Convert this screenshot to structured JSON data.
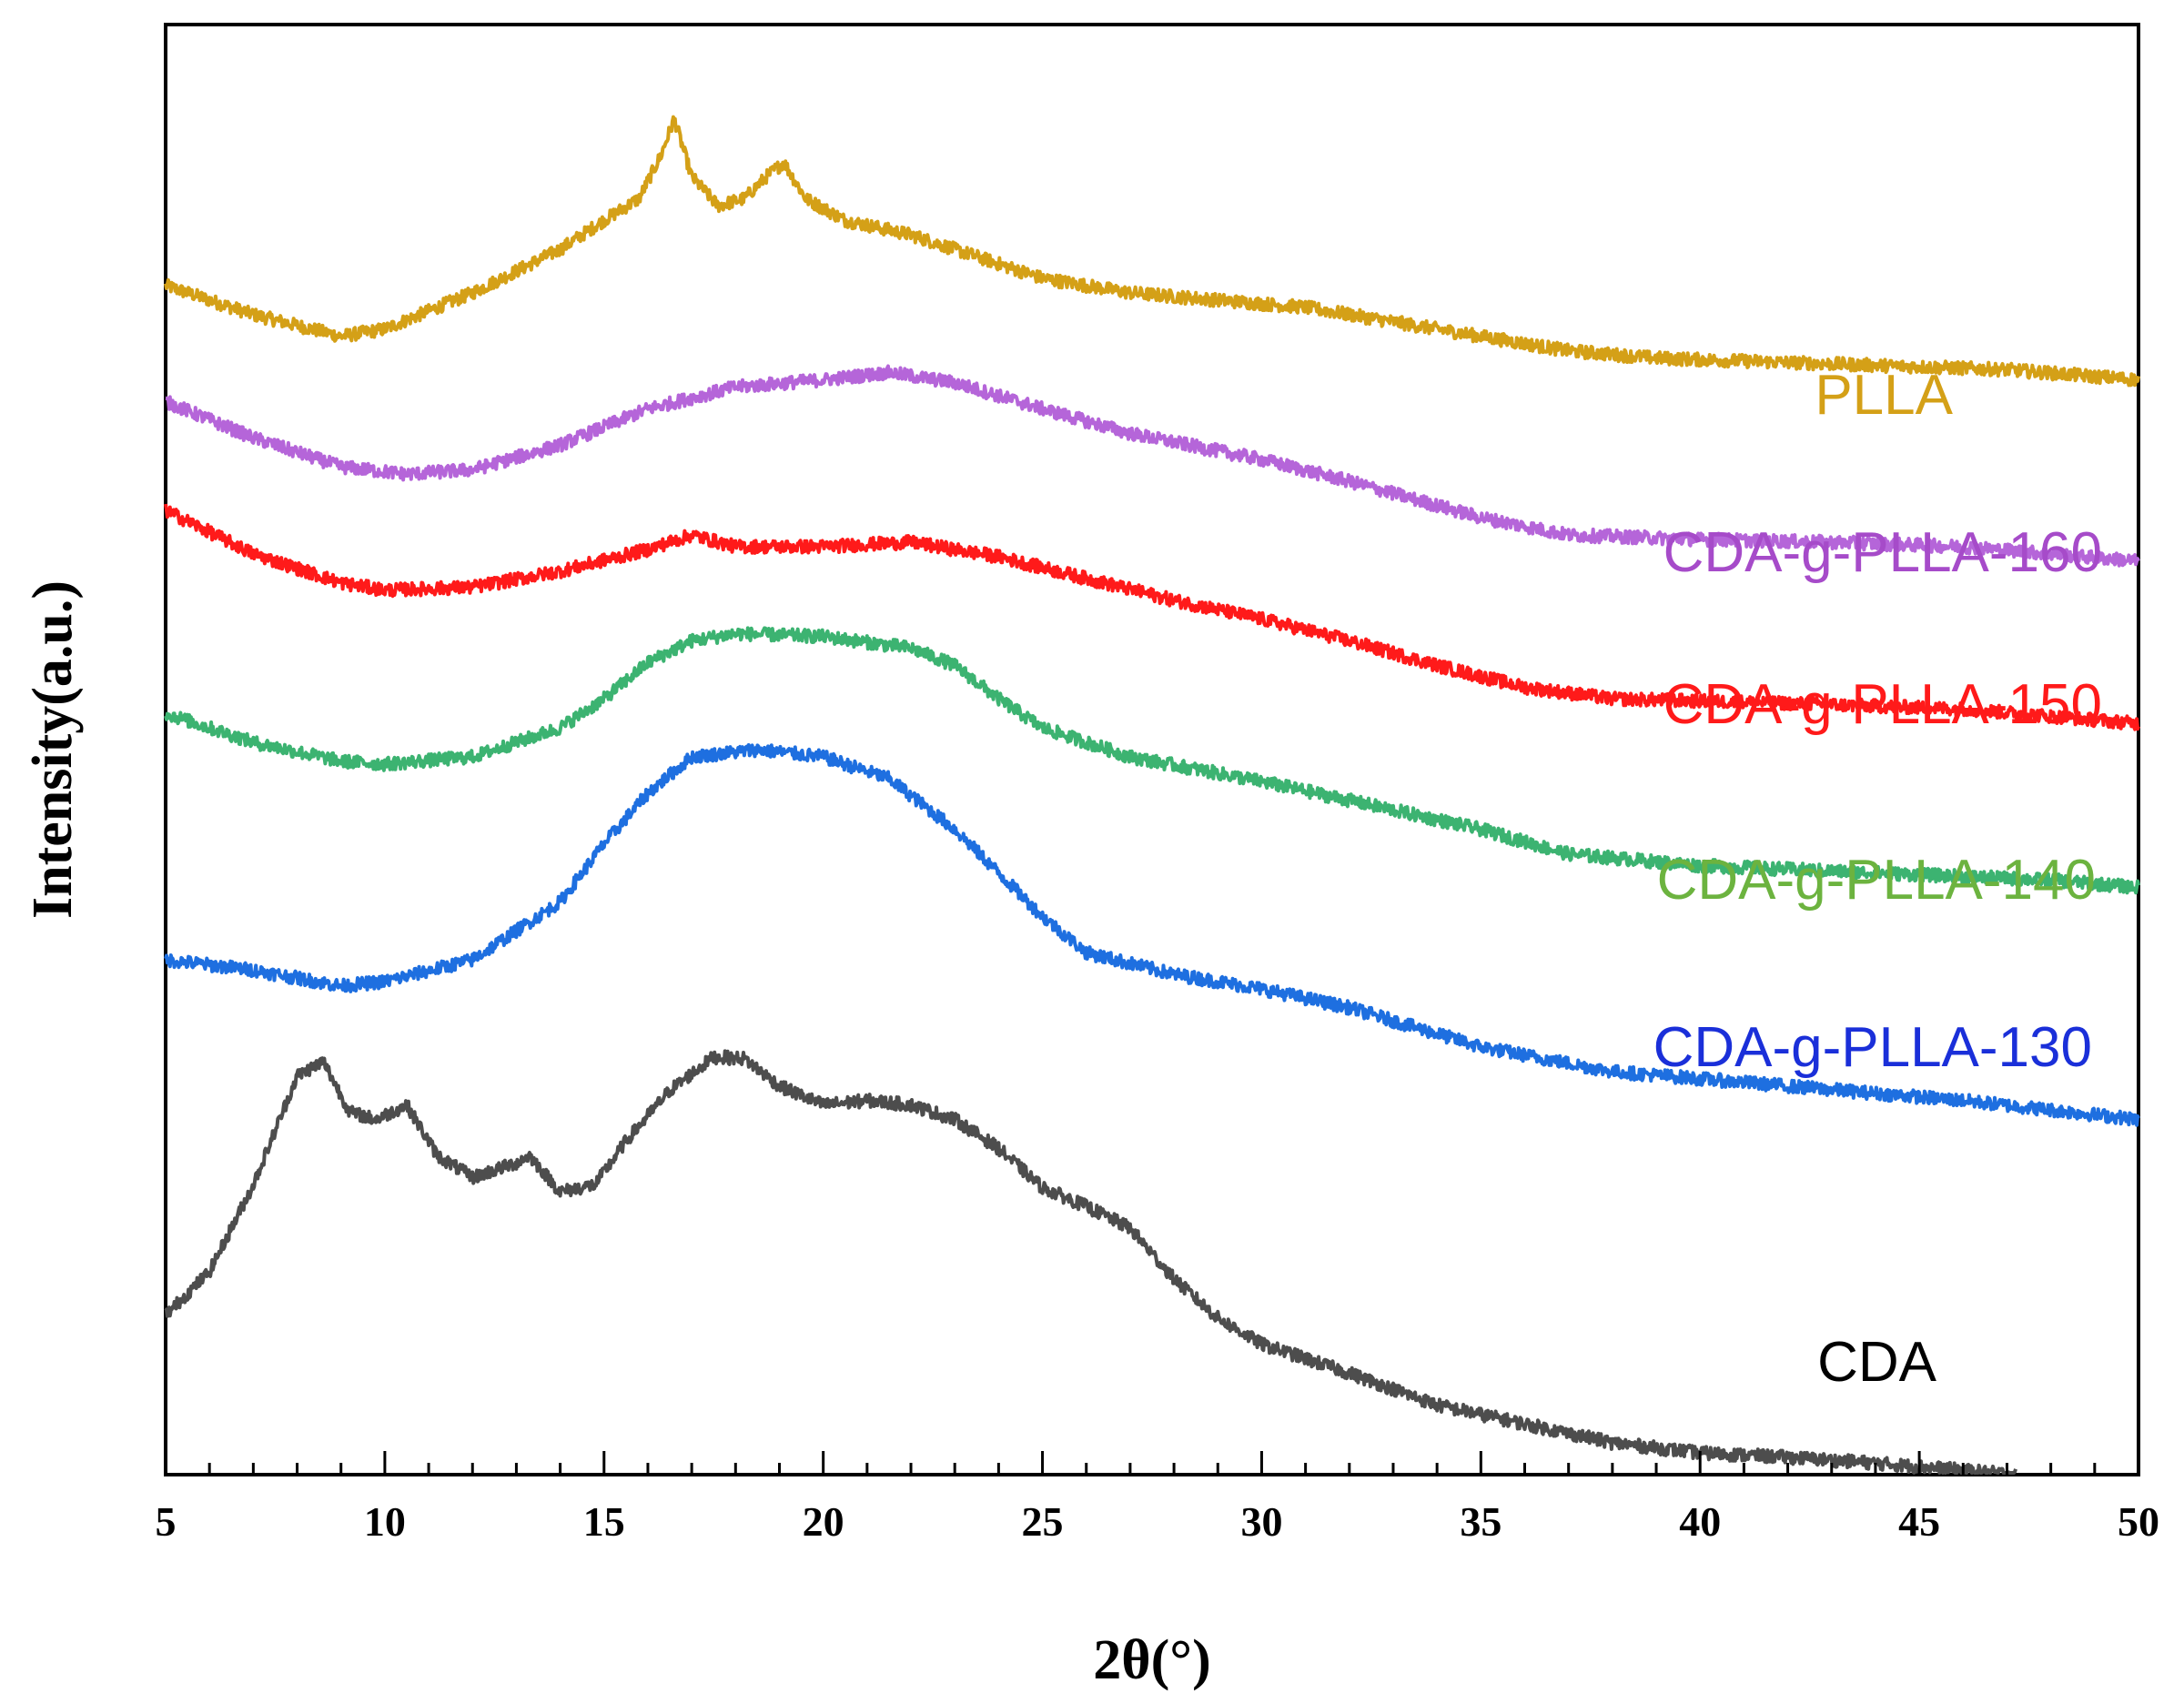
{
  "chart_data": {
    "type": "line",
    "title": "",
    "xlabel": "2θ(°)",
    "ylabel": "Intensity(a.u.)",
    "xlim": [
      5,
      50
    ],
    "ylim": [
      0,
      100
    ],
    "xticks": [
      5,
      10,
      15,
      20,
      25,
      30,
      35,
      40,
      45,
      50
    ],
    "yticks_shown": false,
    "grid": false,
    "legend": "inline labels at right",
    "series": [
      {
        "name": "PLLA",
        "color": "#D4A017",
        "x": [
          5,
          7,
          9,
          10,
          12,
          14,
          15,
          15.8,
          16.3,
          16.6,
          17,
          17.6,
          18.2,
          18.7,
          19.1,
          19.6,
          20.5,
          22,
          23.5,
          25,
          27,
          29,
          31,
          33,
          35,
          37,
          39,
          41,
          43,
          45,
          47,
          50
        ],
        "y": [
          82,
          80,
          78.5,
          79,
          81.5,
          84.5,
          86.5,
          88,
          91,
          93.5,
          89.5,
          87.5,
          88,
          89.5,
          90.5,
          88,
          86.5,
          85.5,
          84,
          82.5,
          81.5,
          81,
          80.5,
          79.5,
          78.5,
          77.5,
          77,
          76.8,
          76.6,
          76.4,
          76.2,
          75.5
        ]
      },
      {
        "name": "CDA-g-PLLA-160",
        "color": "#B565D9",
        "x": [
          5,
          7,
          9,
          10.5,
          12,
          14,
          16,
          18,
          20,
          21.5,
          23,
          25,
          27,
          30,
          32,
          35,
          37,
          40,
          43,
          46,
          50
        ],
        "y": [
          74,
          71.5,
          69.5,
          69,
          69.3,
          71,
          73.5,
          75,
          75.5,
          76,
          75.3,
          73.5,
          71.8,
          70,
          68.5,
          66,
          64.8,
          64.5,
          64.3,
          64,
          63
        ]
      },
      {
        "name": "CDA-g-PLLA-150",
        "color": "#FF1A1A",
        "x": [
          5,
          7,
          9,
          10,
          12,
          14,
          16,
          17,
          18,
          20,
          22,
          24,
          26,
          28,
          30,
          32,
          34,
          36,
          38,
          42,
          46,
          50
        ],
        "y": [
          66.5,
          63.5,
          61.5,
          61,
          61.2,
          62.3,
          63.8,
          64.8,
          64,
          64,
          64.3,
          63.3,
          61.8,
          60.3,
          59,
          57.5,
          55.8,
          54.3,
          53.5,
          53.2,
          52.8,
          51.8
        ]
      },
      {
        "name": "CDA-g-PLLA-140",
        "color": "#3CB371",
        "x": [
          5,
          7,
          9,
          10,
          12,
          14,
          15,
          16,
          17,
          18,
          20,
          22,
          23,
          24,
          25,
          27,
          30,
          32,
          35,
          37,
          40,
          44,
          48,
          50
        ],
        "y": [
          52.5,
          50.5,
          49.2,
          49,
          49.5,
          51.5,
          53.5,
          56,
          57.5,
          58,
          57.8,
          57,
          55.8,
          53.5,
          51.5,
          49.5,
          47.8,
          46.5,
          44.5,
          42.8,
          42,
          41.5,
          41,
          40.5
        ]
      },
      {
        "name": "CDA-g-PLLA-130",
        "color": "#1E6FE0",
        "x": [
          5,
          7,
          9,
          10,
          12,
          14,
          15,
          16,
          17,
          18.5,
          20,
          21.5,
          23,
          24,
          25,
          26,
          28,
          30,
          32,
          35,
          38,
          42,
          46,
          50
        ],
        "y": [
          35.5,
          34.8,
          33.7,
          34,
          35.5,
          39.5,
          43.5,
          47,
          49.5,
          50,
          49.5,
          48,
          44.5,
          41.5,
          38.5,
          36,
          34.5,
          33.5,
          32.2,
          29.5,
          27.8,
          26.8,
          25.8,
          24.5
        ]
      },
      {
        "name": "CDA",
        "color": "#4D4D4D",
        "x": [
          5,
          6,
          7,
          8,
          8.6,
          9.2,
          9.8,
          10.5,
          11.2,
          12,
          13,
          13.3,
          14,
          14.8,
          15.5,
          16.5,
          17.5,
          18.2,
          19,
          20,
          21,
          22,
          23,
          24,
          25,
          26,
          27,
          28,
          29,
          30,
          32,
          34,
          36,
          38,
          40,
          42,
          44,
          46,
          47.2
        ],
        "y": [
          11,
          14,
          20,
          27.5,
          28.5,
          25,
          24.5,
          25.5,
          22,
          20.5,
          21.5,
          22,
          19.5,
          20,
          23,
          26.5,
          28.8,
          28.7,
          26.8,
          25.5,
          25.8,
          25.5,
          24.5,
          22.5,
          19.8,
          18.5,
          17,
          13.5,
          10.8,
          9,
          7,
          4.8,
          3.5,
          2.2,
          1.5,
          1.2,
          0.8,
          0.3,
          0
        ]
      }
    ]
  },
  "series_labels": {
    "plla": "PLLA",
    "cda160": "CDA-g-PLLA-160",
    "cda150": "CDA-g-PLLA-150",
    "cda140": "CDA-g-PLLA-140",
    "cda130": "CDA-g-PLLA-130",
    "cda": "CDA"
  }
}
